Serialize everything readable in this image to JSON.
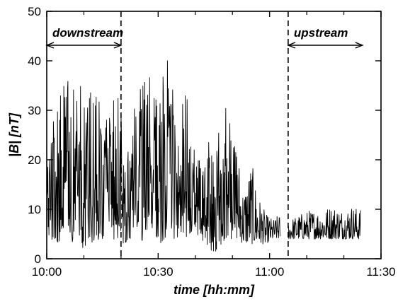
{
  "chart_data": {
    "type": "line",
    "title": "",
    "xlabel": "time [hh:mm]",
    "ylabel": "|B|  [nT]",
    "xlim_minutes_after_10": [
      0,
      90
    ],
    "ylim": [
      0,
      50
    ],
    "x_ticks": [
      {
        "label": "10:00",
        "minutes": 0
      },
      {
        "label": "10:30",
        "minutes": 30
      },
      {
        "label": "11:00",
        "minutes": 60
      },
      {
        "label": "11:30",
        "minutes": 90
      }
    ],
    "y_ticks": [
      0,
      10,
      20,
      30,
      40,
      50
    ],
    "grid": false,
    "markers_minutes_after_10": [
      20,
      65
    ],
    "annotations": [
      {
        "text": "downstream",
        "from_minutes": 0,
        "to_minutes": 20
      },
      {
        "text": "upstream",
        "from_minutes": 65,
        "to_minutes": 85
      }
    ],
    "series": [
      {
        "color": "#000000",
        "description": "|B| trace: highly fluctuating 5–40 nT in downstream region until ~11:05, then ~4–10 nT in upstream region until ~11:25",
        "envelope": [
          {
            "t": 0,
            "low": 4,
            "high": 28
          },
          {
            "t": 3,
            "low": 3,
            "high": 32
          },
          {
            "t": 6,
            "low": 4,
            "high": 39
          },
          {
            "t": 9,
            "low": 2,
            "high": 35
          },
          {
            "t": 12,
            "low": 3,
            "high": 36
          },
          {
            "t": 15,
            "low": 4,
            "high": 30
          },
          {
            "t": 18,
            "low": 4,
            "high": 33
          },
          {
            "t": 20,
            "low": 3,
            "high": 38
          },
          {
            "t": 22,
            "low": 3,
            "high": 30
          },
          {
            "t": 25,
            "low": 4,
            "high": 34
          },
          {
            "t": 27,
            "low": 3,
            "high": 38
          },
          {
            "t": 29,
            "low": 4,
            "high": 40
          },
          {
            "t": 31,
            "low": 3,
            "high": 36
          },
          {
            "t": 33,
            "low": 4,
            "high": 42
          },
          {
            "t": 35,
            "low": 4,
            "high": 30
          },
          {
            "t": 37,
            "low": 4,
            "high": 36
          },
          {
            "t": 39,
            "low": 4,
            "high": 28
          },
          {
            "t": 41,
            "low": 4,
            "high": 20
          },
          {
            "t": 43,
            "low": 3,
            "high": 25
          },
          {
            "t": 45,
            "low": 1,
            "high": 20
          },
          {
            "t": 47,
            "low": 3,
            "high": 36
          },
          {
            "t": 49,
            "low": 4,
            "high": 30
          },
          {
            "t": 51,
            "low": 4,
            "high": 25
          },
          {
            "t": 53,
            "low": 3,
            "high": 14
          },
          {
            "t": 55,
            "low": 3,
            "high": 20
          },
          {
            "t": 57,
            "low": 3,
            "high": 13
          },
          {
            "t": 59,
            "low": 3,
            "high": 9
          },
          {
            "t": 61,
            "low": 4,
            "high": 8
          },
          {
            "t": 62.5,
            "low": 4,
            "high": 9
          },
          {
            "t": 65.2,
            "low": 4,
            "high": 8
          },
          {
            "t": 68,
            "low": 4,
            "high": 9
          },
          {
            "t": 71,
            "low": 4,
            "high": 10
          },
          {
            "t": 74,
            "low": 4,
            "high": 10
          },
          {
            "t": 77,
            "low": 4,
            "high": 11
          },
          {
            "t": 80,
            "low": 4,
            "high": 10
          },
          {
            "t": 82,
            "low": 4,
            "high": 11
          },
          {
            "t": 84.5,
            "low": 4,
            "high": 10
          }
        ]
      }
    ]
  }
}
